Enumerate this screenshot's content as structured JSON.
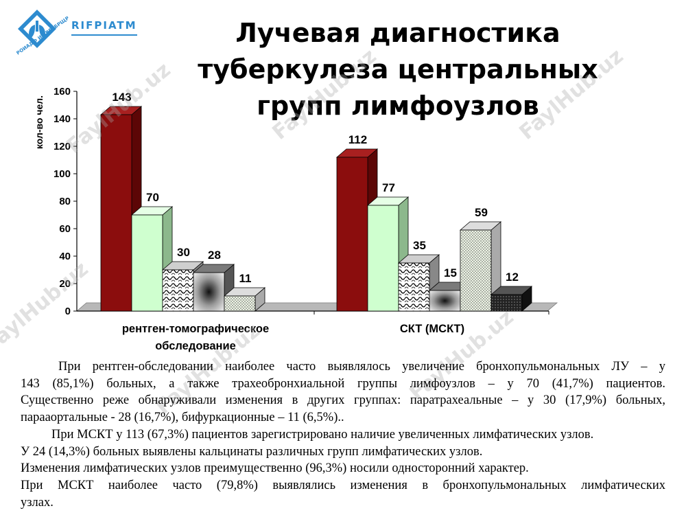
{
  "logo": {
    "text": "RIFPIATM",
    "tagline": "РОИАДФ И АВЕРБРЩР"
  },
  "title": [
    "Лучевая диагностика",
    "туберкулеза центральных",
    "групп лимфоузлов"
  ],
  "watermark": "FaylHub.uz",
  "chart_data": {
    "type": "bar",
    "ylabel": "кол-во чел.",
    "ylim": [
      0,
      160
    ],
    "yticks": [
      0,
      20,
      40,
      60,
      80,
      100,
      120,
      140,
      160
    ],
    "categories": [
      "рентген-томографическое обследование",
      "СКТ (МСКТ)"
    ],
    "category_lines": [
      [
        "рентген-томографическое",
        "обследование"
      ],
      [
        "СКТ (МСКТ)"
      ]
    ],
    "series": [
      {
        "values": [
          143,
          112
        ],
        "color": "#8b0d0d"
      },
      {
        "values": [
          70,
          77
        ],
        "color": "#cfffcf"
      },
      {
        "values": [
          30,
          35
        ],
        "color": "#ffffff"
      },
      {
        "values": [
          28,
          15
        ],
        "color": "#9a9a9a"
      },
      {
        "values": [
          11,
          59
        ],
        "color": "#eef5e6"
      },
      {
        "values": [
          null,
          12
        ],
        "color": "#2b2b2b"
      }
    ]
  },
  "paragraphs": [
    "При рентген-обследовании наиболее часто выявлялось увеличение бронхопульмональных ЛУ – у",
    "143 (85,1%) больных, а также трахеобронхиальной группы лимфоузлов – у 70 (41,7%) пациентов.",
    "Существенно реже обнаруживали изменения в других группах: паратрахеальные – у 30 (17,9%) больных,",
    "парааортальные - 28 (16,7%), бифуркационные – 11 (6,5%)..",
    "При МСКТ у 113 (67,3%) пациентов зарегистрировано наличие увеличенных лимфатических узлов.",
    "У 24 (14,3%) больных выявлены кальцинаты различных групп лимфатических узлов.",
    "Изменения лимфатических узлов преимущественно (96,3%) носили односторонний характер.",
    "При МСКТ наиболее часто (79,8%) выявлялись изменения в бронхопульмональных лимфатических",
    "узлах."
  ]
}
